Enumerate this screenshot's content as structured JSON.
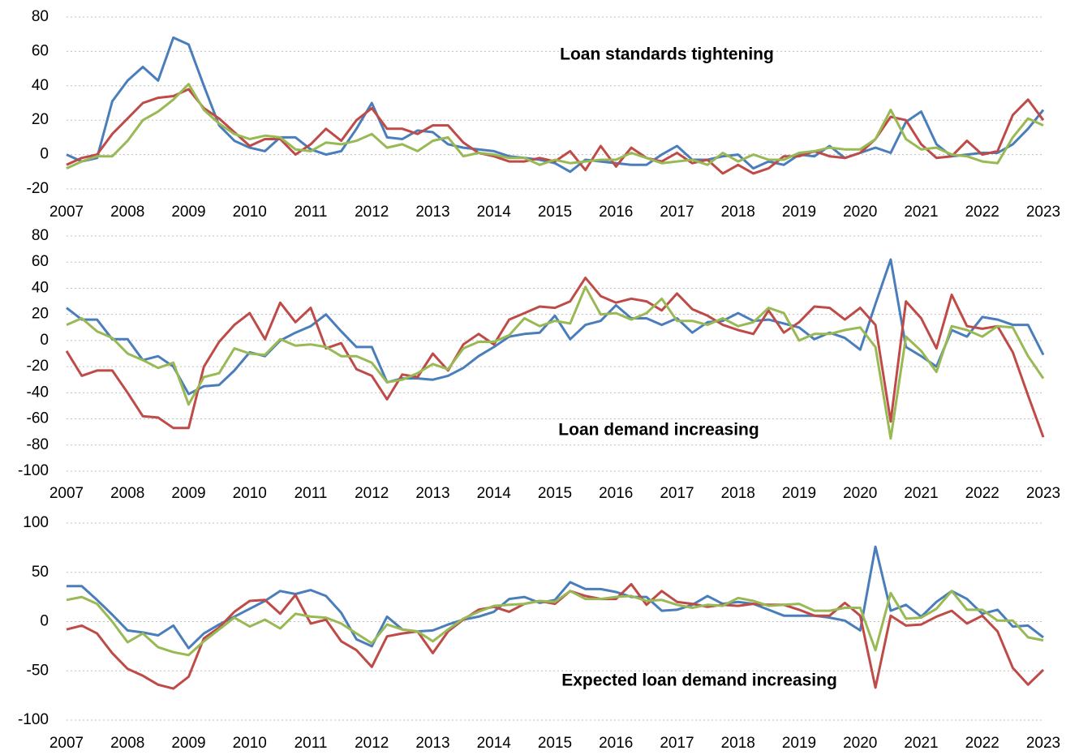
{
  "chart_data": [
    {
      "type": "line",
      "annotation": "Loan standards tightening",
      "x": [
        2007,
        2007.25,
        2007.5,
        2007.75,
        2008,
        2008.25,
        2008.5,
        2008.75,
        2009,
        2009.25,
        2009.5,
        2009.75,
        2010,
        2010.25,
        2010.5,
        2010.75,
        2011,
        2011.25,
        2011.5,
        2011.75,
        2012,
        2012.25,
        2012.5,
        2012.75,
        2013,
        2013.25,
        2013.5,
        2013.75,
        2014,
        2014.25,
        2014.5,
        2014.75,
        2015,
        2015.25,
        2015.5,
        2015.75,
        2016,
        2016.25,
        2016.5,
        2016.75,
        2017,
        2017.25,
        2017.5,
        2017.75,
        2018,
        2018.25,
        2018.5,
        2018.75,
        2019,
        2019.25,
        2019.5,
        2019.75,
        2020,
        2020.25,
        2020.5,
        2020.75,
        2021,
        2021.25,
        2021.5,
        2021.75,
        2022,
        2022.25,
        2022.5,
        2022.75,
        2023
      ],
      "series": [
        {
          "color": "#4a7ebb",
          "values": [
            0,
            -4,
            -2,
            31,
            43,
            51,
            43,
            68,
            64,
            40,
            17,
            8,
            4,
            2,
            10,
            10,
            3,
            0,
            2,
            15,
            30,
            10,
            9,
            14,
            13,
            6,
            4,
            3,
            2,
            -1,
            -2,
            -3,
            -5,
            -10,
            -3,
            -4,
            -5,
            -6,
            -6,
            0,
            5,
            -3,
            -3,
            -1,
            0,
            -8,
            -4,
            -6,
            0,
            -1,
            5,
            -2,
            1,
            4,
            1,
            19,
            25,
            6,
            -1,
            0,
            1,
            1,
            6,
            15,
            26
          ]
        },
        {
          "color": "#be4b48",
          "values": [
            -6,
            -2,
            0,
            12,
            21,
            30,
            33,
            34,
            38,
            27,
            21,
            13,
            5,
            9,
            9,
            0,
            6,
            15,
            8,
            20,
            27,
            15,
            15,
            12,
            17,
            17,
            7,
            1,
            -1,
            -4,
            -4,
            -2,
            -4,
            2,
            -9,
            5,
            -7,
            4,
            -2,
            -4,
            1,
            -5,
            -3,
            -11,
            -6,
            -11,
            -8,
            -1,
            -1,
            2,
            -1,
            -2,
            1,
            9,
            22,
            20,
            6,
            -2,
            -1,
            8,
            0,
            2,
            23,
            32,
            20
          ]
        },
        {
          "color": "#98b954",
          "values": [
            -8,
            -4,
            -1,
            -1,
            8,
            20,
            25,
            32,
            41,
            26,
            18,
            12,
            9,
            11,
            10,
            3,
            2,
            7,
            6,
            8,
            12,
            4,
            6,
            2,
            8,
            10,
            -1,
            1,
            0,
            -2,
            -2,
            -6,
            -3,
            -5,
            -4,
            -3,
            -3,
            1,
            -2,
            -5,
            -4,
            -3,
            -6,
            1,
            -4,
            0,
            -3,
            -3,
            1,
            2,
            4,
            3,
            3,
            9,
            26,
            9,
            3,
            4,
            0,
            -1,
            -4,
            -5,
            10,
            21,
            17
          ]
        }
      ],
      "xlim": [
        2007,
        2023
      ],
      "xticks": [
        2007,
        2008,
        2009,
        2010,
        2011,
        2012,
        2013,
        2014,
        2015,
        2016,
        2017,
        2018,
        2019,
        2020,
        2021,
        2022,
        2023
      ],
      "ylim": [
        -20,
        80
      ],
      "yticks": [
        -20,
        0,
        20,
        40,
        60,
        80
      ],
      "grid": true
    },
    {
      "type": "line",
      "annotation": "Loan demand increasing",
      "x": [
        2007,
        2007.25,
        2007.5,
        2007.75,
        2008,
        2008.25,
        2008.5,
        2008.75,
        2009,
        2009.25,
        2009.5,
        2009.75,
        2010,
        2010.25,
        2010.5,
        2010.75,
        2011,
        2011.25,
        2011.5,
        2011.75,
        2012,
        2012.25,
        2012.5,
        2012.75,
        2013,
        2013.25,
        2013.5,
        2013.75,
        2014,
        2014.25,
        2014.5,
        2014.75,
        2015,
        2015.25,
        2015.5,
        2015.75,
        2016,
        2016.25,
        2016.5,
        2016.75,
        2017,
        2017.25,
        2017.5,
        2017.75,
        2018,
        2018.25,
        2018.5,
        2018.75,
        2019,
        2019.25,
        2019.5,
        2019.75,
        2020,
        2020.25,
        2020.5,
        2020.75,
        2021,
        2021.25,
        2021.5,
        2021.75,
        2022,
        2022.25,
        2022.5,
        2022.75,
        2023
      ],
      "series": [
        {
          "color": "#4a7ebb",
          "values": [
            25,
            16,
            16,
            1,
            1,
            -15,
            -12,
            -20,
            -41,
            -35,
            -34,
            -23,
            -9,
            -12,
            0,
            6,
            11,
            20,
            7,
            -5,
            -5,
            -32,
            -29,
            -29,
            -30,
            -27,
            -21,
            -12,
            -5,
            3,
            5,
            6,
            19,
            1,
            12,
            15,
            27,
            17,
            17,
            12,
            17,
            6,
            14,
            15,
            21,
            15,
            16,
            13,
            10,
            1,
            6,
            2,
            -7,
            28,
            62,
            -5,
            -12,
            -20,
            8,
            3,
            18,
            16,
            12,
            12,
            -11
          ]
        },
        {
          "color": "#be4b48",
          "values": [
            -8,
            -27,
            -23,
            -23,
            -40,
            -58,
            -59,
            -67,
            -67,
            -20,
            -1,
            12,
            21,
            1,
            29,
            14,
            25,
            -6,
            -2,
            -22,
            -27,
            -45,
            -26,
            -28,
            -10,
            -23,
            -3,
            5,
            -3,
            16,
            21,
            26,
            25,
            30,
            48,
            34,
            29,
            32,
            30,
            23,
            36,
            24,
            19,
            12,
            8,
            5,
            23,
            6,
            14,
            26,
            25,
            16,
            25,
            12,
            -62,
            30,
            17,
            -6,
            35,
            11,
            9,
            11,
            -9,
            -42,
            -74
          ]
        },
        {
          "color": "#98b954",
          "values": [
            12,
            17,
            7,
            2,
            -10,
            -15,
            -21,
            -17,
            -49,
            -28,
            -25,
            -6,
            -10,
            -11,
            1,
            -4,
            -3,
            -5,
            -12,
            -12,
            -17,
            -32,
            -30,
            -25,
            -18,
            -22,
            -6,
            -1,
            -1,
            4,
            17,
            11,
            15,
            13,
            41,
            20,
            21,
            16,
            21,
            32,
            15,
            15,
            12,
            17,
            11,
            14,
            25,
            21,
            0,
            5,
            5,
            8,
            10,
            -5,
            -75,
            3,
            -8,
            -24,
            11,
            8,
            3,
            11,
            10,
            -12,
            -29
          ]
        }
      ],
      "xlim": [
        2007,
        2023
      ],
      "xticks": [
        2007,
        2008,
        2009,
        2010,
        2011,
        2012,
        2013,
        2014,
        2015,
        2016,
        2017,
        2018,
        2019,
        2020,
        2021,
        2022,
        2023
      ],
      "ylim": [
        -100,
        80
      ],
      "yticks": [
        -100,
        -80,
        -60,
        -40,
        -20,
        0,
        20,
        40,
        60,
        80
      ],
      "grid": true
    },
    {
      "type": "line",
      "annotation": "Expected loan demand increasing",
      "x": [
        2007,
        2007.25,
        2007.5,
        2007.75,
        2008,
        2008.25,
        2008.5,
        2008.75,
        2009,
        2009.25,
        2009.5,
        2009.75,
        2010,
        2010.25,
        2010.5,
        2010.75,
        2011,
        2011.25,
        2011.5,
        2011.75,
        2012,
        2012.25,
        2012.5,
        2012.75,
        2013,
        2013.25,
        2013.5,
        2013.75,
        2014,
        2014.25,
        2014.5,
        2014.75,
        2015,
        2015.25,
        2015.5,
        2015.75,
        2016,
        2016.25,
        2016.5,
        2016.75,
        2017,
        2017.25,
        2017.5,
        2017.75,
        2018,
        2018.25,
        2018.5,
        2018.75,
        2019,
        2019.25,
        2019.5,
        2019.75,
        2020,
        2020.25,
        2020.5,
        2020.75,
        2021,
        2021.25,
        2021.5,
        2021.75,
        2022,
        2022.25,
        2022.5,
        2022.75,
        2023
      ],
      "series": [
        {
          "color": "#4a7ebb",
          "values": [
            36,
            36,
            22,
            7,
            -9,
            -11,
            -14,
            -4,
            -27,
            -12,
            -3,
            5,
            13,
            21,
            31,
            28,
            32,
            26,
            9,
            -18,
            -25,
            5,
            -8,
            -10,
            -9,
            -3,
            2,
            5,
            10,
            23,
            25,
            19,
            22,
            40,
            33,
            33,
            30,
            25,
            25,
            11,
            12,
            17,
            26,
            18,
            20,
            18,
            12,
            6,
            6,
            6,
            4,
            1,
            -9,
            76,
            11,
            17,
            5,
            20,
            31,
            23,
            8,
            12,
            -5,
            -4,
            -16
          ]
        },
        {
          "color": "#be4b48",
          "values": [
            -8,
            -4,
            -12,
            -32,
            -48,
            -55,
            -64,
            -68,
            -56,
            -17,
            -6,
            10,
            21,
            22,
            8,
            27,
            -2,
            2,
            -20,
            -29,
            -46,
            -15,
            -12,
            -10,
            -32,
            -10,
            2,
            12,
            15,
            10,
            18,
            21,
            18,
            31,
            26,
            23,
            23,
            38,
            17,
            31,
            20,
            18,
            15,
            17,
            16,
            18,
            17,
            17,
            12,
            6,
            6,
            19,
            6,
            -67,
            6,
            -4,
            -3,
            5,
            11,
            -2,
            6,
            -10,
            -47,
            -64,
            -49
          ]
        },
        {
          "color": "#98b954",
          "values": [
            22,
            25,
            18,
            0,
            -21,
            -12,
            -26,
            -31,
            -34,
            -20,
            -8,
            4,
            -5,
            2,
            -7,
            8,
            5,
            4,
            -2,
            -12,
            -22,
            -3,
            -8,
            -10,
            -20,
            -8,
            3,
            10,
            16,
            17,
            18,
            21,
            20,
            31,
            23,
            23,
            25,
            26,
            21,
            22,
            17,
            14,
            17,
            16,
            24,
            21,
            16,
            17,
            18,
            11,
            11,
            14,
            14,
            -29,
            29,
            3,
            4,
            13,
            31,
            12,
            12,
            1,
            1,
            -16,
            -19
          ]
        }
      ],
      "xlim": [
        2007,
        2023
      ],
      "xticks": [
        2007,
        2008,
        2009,
        2010,
        2011,
        2012,
        2013,
        2014,
        2015,
        2016,
        2017,
        2018,
        2019,
        2020,
        2021,
        2022,
        2023
      ],
      "ylim": [
        -100,
        100
      ],
      "yticks": [
        -100,
        -50,
        0,
        50,
        100
      ],
      "grid": true
    }
  ]
}
